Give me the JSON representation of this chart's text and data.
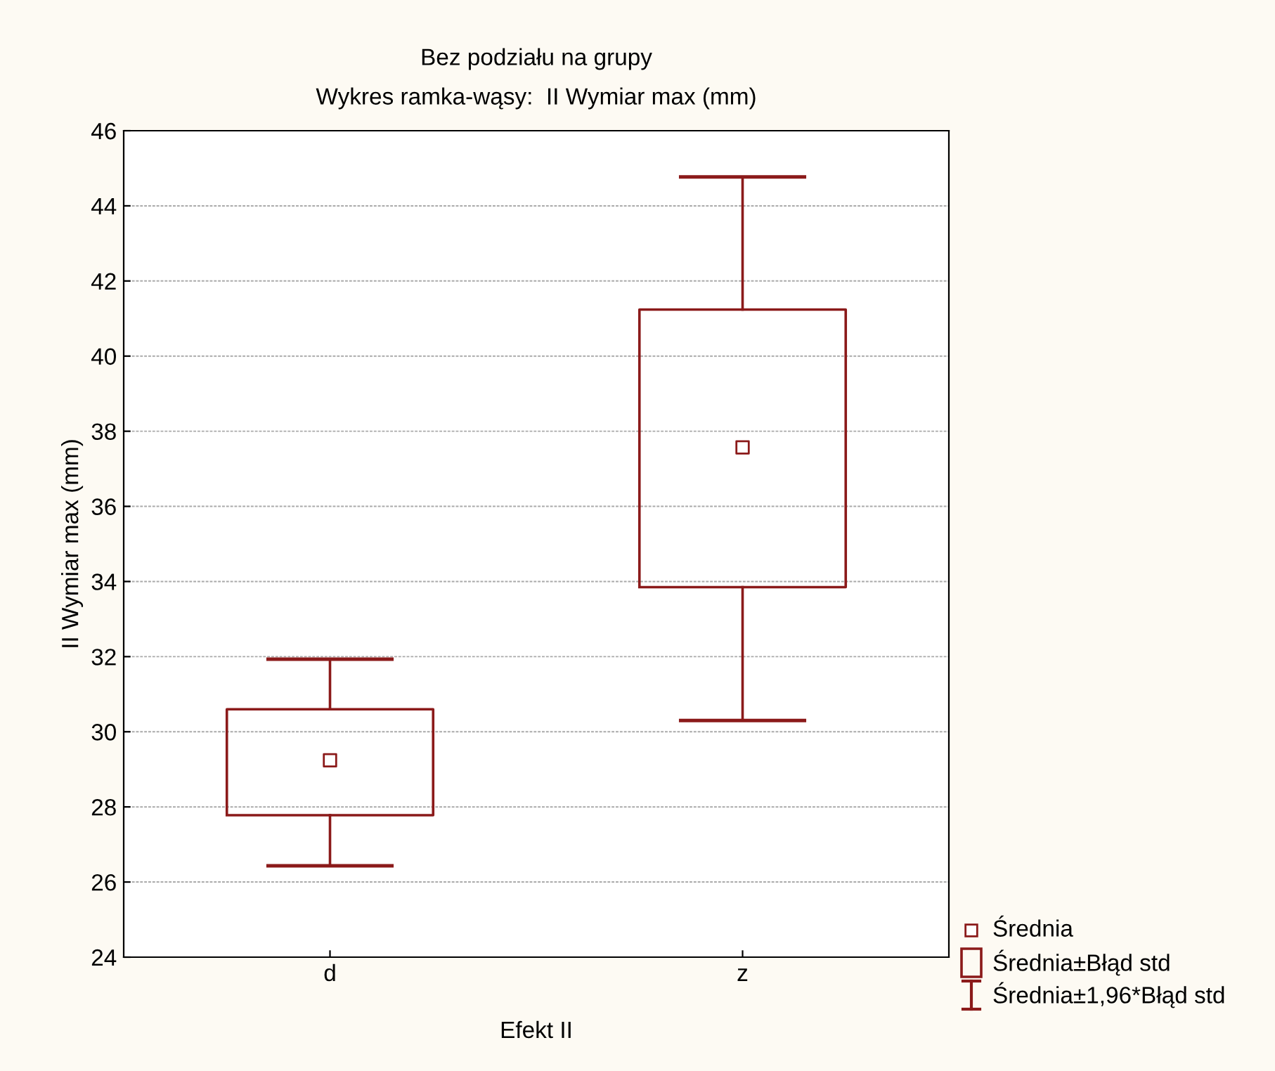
{
  "chart_data": {
    "type": "box",
    "title": "Bez podziału na grupy",
    "subtitle": "Wykres ramka-wąsy:  II Wymiar max (mm)",
    "xlabel": "Efekt II",
    "ylabel": "II Wymiar max (mm)",
    "categories": [
      "d",
      "z"
    ],
    "series": [
      {
        "color": "#8b1a1a",
        "boxes": [
          {
            "low": 26.43,
            "q1": 27.78,
            "median": 29.24,
            "q3": 30.6,
            "high": 31.93
          },
          {
            "low": 30.3,
            "q1": 33.85,
            "median": 37.57,
            "q3": 41.24,
            "high": 44.77
          }
        ]
      }
    ],
    "ylim": [
      24,
      46
    ],
    "yticks": [
      24,
      26,
      28,
      30,
      32,
      34,
      36,
      38,
      40,
      42,
      44,
      46
    ],
    "grid": "y",
    "marker": "square",
    "annotations": [
      "Średnia",
      "Średnia±Błąd std",
      "Średnia±1,96*Błąd std"
    ]
  }
}
